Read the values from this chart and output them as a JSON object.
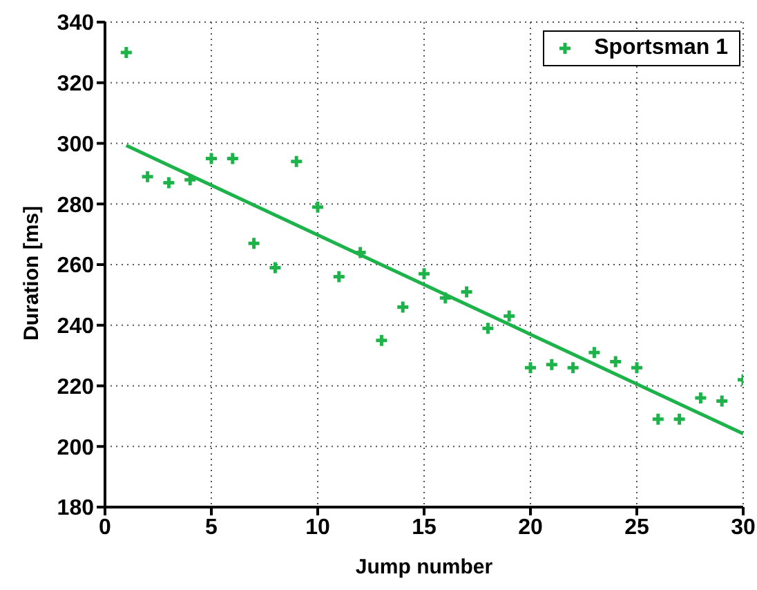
{
  "chart_data": {
    "type": "scatter",
    "xlabel": "Jump number",
    "ylabel": "Duration [ms]",
    "xlim": [
      0,
      30
    ],
    "xticks": [
      0,
      5,
      10,
      15,
      20,
      25,
      30
    ],
    "ylim": [
      180,
      340
    ],
    "yticks": [
      180,
      200,
      220,
      240,
      260,
      280,
      300,
      320,
      340
    ],
    "grid": true,
    "legend": "top right",
    "marker": "cross",
    "series": [
      {
        "name": "Sportsman 1",
        "color": "#1db34a",
        "x": [
          1,
          2,
          3,
          4,
          5,
          6,
          7,
          8,
          9,
          10,
          11,
          12,
          13,
          14,
          15,
          16,
          17,
          18,
          19,
          20,
          21,
          22,
          23,
          24,
          25,
          26,
          27,
          28,
          29,
          30
        ],
        "values": [
          330,
          289,
          287,
          288,
          295,
          295,
          267,
          259,
          294,
          279,
          256,
          264,
          235,
          246,
          257,
          249,
          251,
          239,
          243,
          226,
          227,
          226,
          231,
          228,
          226,
          209,
          209,
          216,
          215,
          222
        ]
      },
      {
        "type": "line",
        "color": "#1db34a",
        "x": [
          1,
          30
        ],
        "values": [
          299.3,
          204.2
        ],
        "line_style": "solid",
        "marker": "none"
      }
    ]
  }
}
